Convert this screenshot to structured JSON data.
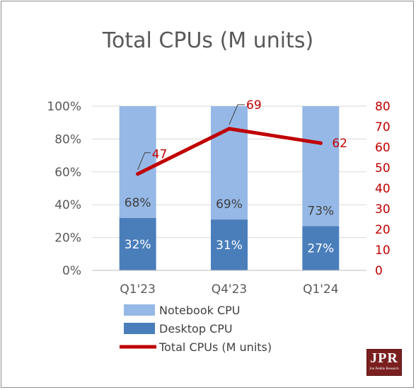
{
  "chart_data": {
    "type": "bar",
    "stacked": true,
    "title": "Total CPUs (M units)",
    "categories": [
      "Q1'23",
      "Q4'23",
      "Q1'24"
    ],
    "series": [
      {
        "name": "Desktop CPU",
        "kind": "bar",
        "axis": "left",
        "values": [
          32,
          31,
          27
        ],
        "labels": [
          "32%",
          "31%",
          "27%"
        ],
        "color": "#4a7ebb"
      },
      {
        "name": "Notebook CPU",
        "kind": "bar",
        "axis": "left",
        "values": [
          68,
          69,
          73
        ],
        "labels": [
          "68%",
          "69%",
          "73%"
        ],
        "color": "#95b8e6"
      },
      {
        "name": "Total CPUs (M units)",
        "kind": "line",
        "axis": "right",
        "values": [
          47,
          69,
          62
        ],
        "labels": [
          "47",
          "69",
          "62"
        ],
        "color": "#c00000"
      }
    ],
    "y_left": {
      "ylim": [
        0,
        100
      ],
      "ticks": [
        "0%",
        "20%",
        "40%",
        "60%",
        "80%",
        "100%"
      ]
    },
    "y_right": {
      "ylim": [
        0,
        80
      ],
      "ticks": [
        "0",
        "10",
        "20",
        "30",
        "40",
        "50",
        "60",
        "70",
        "80"
      ],
      "color": "#c00000"
    },
    "grid": true,
    "legend_position": "bottom",
    "legend": [
      "Notebook CPU",
      "Desktop CPU",
      "Total CPUs (M units)"
    ]
  },
  "logo": {
    "text": "JPR",
    "subtext": "Jon Peddie Research"
  }
}
